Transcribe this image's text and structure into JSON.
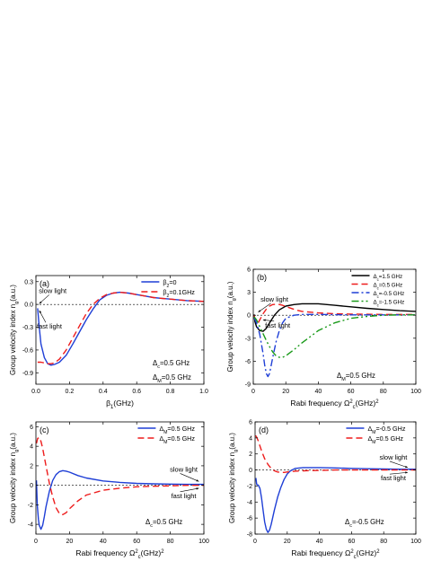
{
  "colors": {
    "black": "#000000",
    "red": "#ee1c1c",
    "blue": "#1f3fd6",
    "green": "#1a9a1a",
    "ref": "#000000"
  },
  "chart_data": [
    {
      "type": "line",
      "panel_label": "(a)",
      "xlabel_main": "β",
      "xlabel_sub": "1",
      "xlabel_tail": "(GHz)",
      "ylabel_main": "Group velocity index n",
      "ylabel_sub": "g",
      "ylabel_tail": "(a.u.)",
      "xlim": [
        0,
        1.0
      ],
      "ylim": [
        -1.05,
        0.38
      ],
      "xticks": [
        0.0,
        0.2,
        0.4,
        0.6,
        0.8,
        1.0
      ],
      "xticklabels": [
        "0.0",
        "0.2",
        "0.4",
        "0.6",
        "0.8",
        "1.0"
      ],
      "yticks": [
        -0.9,
        -0.6,
        -0.3,
        0.0,
        0.3
      ],
      "yticklabels": [
        "-0.9",
        "-0.6",
        "-0.3",
        "0.0",
        "0.3"
      ],
      "reference_line": 0,
      "legend_position": "top-right",
      "series": [
        {
          "name_main": "β",
          "name_sub": "2",
          "name_tail": "=0",
          "color": "blue",
          "dash": "solid",
          "x": [
            0.01,
            0.02,
            0.03,
            0.05,
            0.07,
            0.09,
            0.11,
            0.14,
            0.18,
            0.22,
            0.26,
            0.3,
            0.34,
            0.38,
            0.42,
            0.46,
            0.5,
            0.55,
            0.6,
            0.65,
            0.7,
            0.75,
            0.8,
            0.85,
            0.9,
            0.95,
            1.0
          ],
          "y": [
            -0.05,
            -0.3,
            -0.52,
            -0.7,
            -0.78,
            -0.8,
            -0.79,
            -0.76,
            -0.67,
            -0.52,
            -0.36,
            -0.2,
            -0.06,
            0.06,
            0.12,
            0.15,
            0.16,
            0.15,
            0.13,
            0.11,
            0.09,
            0.08,
            0.07,
            0.06,
            0.05,
            0.045,
            0.04
          ]
        },
        {
          "name_main": "β",
          "name_sub": "2",
          "name_tail": "=0.1GHz",
          "color": "red",
          "dash": "dashed",
          "x": [
            0.01,
            0.03,
            0.05,
            0.07,
            0.09,
            0.11,
            0.14,
            0.18,
            0.22,
            0.26,
            0.3,
            0.34,
            0.38,
            0.42,
            0.46,
            0.5,
            0.55,
            0.6,
            0.65,
            0.7,
            0.75,
            0.8,
            0.85,
            0.9,
            0.95,
            1.0
          ],
          "y": [
            -0.76,
            -0.76,
            -0.77,
            -0.78,
            -0.78,
            -0.77,
            -0.72,
            -0.6,
            -0.44,
            -0.28,
            -0.12,
            0.0,
            0.08,
            0.13,
            0.15,
            0.16,
            0.15,
            0.13,
            0.11,
            0.09,
            0.08,
            0.07,
            0.06,
            0.05,
            0.045,
            0.04
          ]
        }
      ],
      "annotations": [
        {
          "text": "slow light",
          "x": 0.1,
          "y": 0.15,
          "ax": 0.02,
          "ay": 0.01
        },
        {
          "text": "fast light",
          "x": 0.08,
          "y": -0.32,
          "ax": 0.02,
          "ay": -0.08
        }
      ],
      "params": [
        {
          "main": "Δ",
          "sub": "c",
          "tail": "=0.5 GHz"
        },
        {
          "main": "Δ",
          "sub": "M",
          "tail": "=0.5 GHz"
        }
      ]
    },
    {
      "type": "line",
      "panel_label": "(b)",
      "xlabel_main": "Rabi frequency Ω",
      "xlabel_sup": "2",
      "xlabel_sub": "c",
      "xlabel_tail": "(GHz)",
      "xlabel_sup2": "2",
      "ylabel_main": "Group velocity index n",
      "ylabel_sub": "g",
      "ylabel_tail": "(a.u.)",
      "xlim": [
        0,
        100
      ],
      "ylim": [
        -9,
        6
      ],
      "xticks": [
        0,
        20,
        40,
        60,
        80,
        100
      ],
      "xticklabels": [
        "0",
        "20",
        "40",
        "60",
        "80",
        "100"
      ],
      "yticks": [
        -9,
        -6,
        -3,
        0,
        3,
        6
      ],
      "yticklabels": [
        "-9",
        "-6",
        "-3",
        "0",
        "3",
        "6"
      ],
      "reference_line": 0,
      "legend_position": "top-right",
      "series": [
        {
          "name_main": "Δ",
          "name_sub": "c",
          "name_tail": "=1.5 GHz",
          "color": "black",
          "dash": "solid",
          "x": [
            0.5,
            1,
            2,
            4,
            6,
            8,
            10,
            13,
            16,
            20,
            25,
            30,
            35,
            40,
            50,
            60,
            70,
            80,
            90,
            100
          ],
          "y": [
            0.1,
            -0.8,
            -1.5,
            -2.0,
            -2.1,
            -1.7,
            -1.0,
            0.0,
            0.7,
            1.2,
            1.4,
            1.5,
            1.5,
            1.5,
            1.3,
            1.1,
            0.9,
            0.75,
            0.6,
            0.5
          ]
        },
        {
          "name_main": "Δ",
          "name_sub": "c",
          "name_tail": "=0.5 GHz",
          "color": "red",
          "dash": "dashed",
          "x": [
            0.5,
            1,
            2,
            3,
            4,
            5,
            6,
            8,
            10,
            12,
            15,
            18,
            22,
            26,
            30,
            40,
            50,
            60,
            80,
            100
          ],
          "y": [
            0.0,
            -0.5,
            -1.0,
            -1.0,
            -0.6,
            -0.2,
            0.2,
            0.8,
            1.2,
            1.4,
            1.45,
            1.3,
            1.0,
            0.7,
            0.5,
            0.3,
            0.2,
            0.15,
            0.1,
            0.1
          ]
        },
        {
          "name_main": "Δ",
          "name_sub": "c",
          "name_tail": "=-0.5 GHz",
          "color": "blue",
          "dash": "dashdot",
          "x": [
            0.5,
            2,
            4,
            6,
            7,
            8,
            9,
            10,
            12,
            14,
            16,
            18,
            20,
            25,
            30,
            40,
            60,
            80,
            100
          ],
          "y": [
            -0.3,
            -1.0,
            -2.5,
            -5.0,
            -6.5,
            -7.6,
            -8.0,
            -7.6,
            -5.5,
            -3.5,
            -2.0,
            -1.0,
            -0.4,
            0.0,
            0.1,
            0.1,
            0.05,
            0.05,
            0.05
          ]
        },
        {
          "name_main": "Δ",
          "name_sub": "c",
          "name_tail": "=-1.5 GHz",
          "color": "green",
          "dash": "dashdotdot",
          "x": [
            0.5,
            2,
            4,
            6,
            8,
            10,
            12,
            14,
            16,
            18,
            20,
            25,
            30,
            35,
            40,
            50,
            60,
            70,
            80,
            90,
            100
          ],
          "y": [
            -0.2,
            -0.6,
            -1.5,
            -2.4,
            -3.3,
            -4.1,
            -4.8,
            -5.3,
            -5.5,
            -5.5,
            -5.3,
            -4.5,
            -3.6,
            -2.8,
            -2.0,
            -1.0,
            -0.4,
            -0.15,
            0.0,
            0.05,
            0.05
          ]
        }
      ],
      "annotations": [
        {
          "text": "slow light",
          "x": 13,
          "y": 1.8,
          "ax": 3,
          "ay": 0.4
        },
        {
          "text": "fast light",
          "x": 15,
          "y": -1.6,
          "ax": 6,
          "ay": -0.6
        }
      ],
      "params": [
        {
          "main": "Δ",
          "sub": "M",
          "tail": "=0.5 GHz"
        }
      ]
    },
    {
      "type": "line",
      "panel_label": "(c)",
      "xlabel_main": "Rabi frequency Ω",
      "xlabel_sup": "2",
      "xlabel_sub": "c",
      "xlabel_tail": "(GHz)",
      "xlabel_sup2": "2",
      "ylabel_main": "Group velocity index n",
      "ylabel_sub": "g",
      "ylabel_tail": "(a.u.)",
      "xlim": [
        0,
        100
      ],
      "ylim": [
        -5,
        6.5
      ],
      "xticks": [
        0,
        20,
        40,
        60,
        80,
        100
      ],
      "xticklabels": [
        "0",
        "20",
        "40",
        "60",
        "80",
        "100"
      ],
      "yticks": [
        -4,
        -2,
        0,
        2,
        4,
        6
      ],
      "yticklabels": [
        "-4",
        "-2",
        "0",
        "2",
        "4",
        "6"
      ],
      "reference_line": 0,
      "legend_position": "top-right",
      "series": [
        {
          "name_main": "Δ",
          "name_sub": "M",
          "name_tail": "=0.5 GHz",
          "color": "blue",
          "dash": "solid",
          "x": [
            0.3,
            0.8,
            1.5,
            2,
            3,
            4,
            5,
            6,
            8,
            10,
            12,
            14,
            16,
            18,
            20,
            25,
            30,
            40,
            50,
            60,
            70,
            80,
            90,
            100
          ],
          "y": [
            0.5,
            -2.0,
            -3.5,
            -4.1,
            -4.5,
            -4.1,
            -3.2,
            -2.2,
            -0.6,
            0.5,
            1.1,
            1.4,
            1.5,
            1.45,
            1.35,
            1.0,
            0.75,
            0.45,
            0.3,
            0.2,
            0.15,
            0.12,
            0.1,
            0.1
          ]
        },
        {
          "name_main": "Δ",
          "name_sub": "M",
          "name_tail": "=0.5 GHz",
          "color": "red",
          "dash": "dashed",
          "x": [
            0.3,
            1,
            2,
            3,
            4,
            6,
            8,
            10,
            12,
            14,
            16,
            18,
            20,
            25,
            30,
            40,
            50,
            60,
            70,
            80,
            90,
            100
          ],
          "y": [
            4.3,
            4.8,
            4.9,
            4.5,
            3.8,
            2.0,
            0.2,
            -1.2,
            -2.3,
            -2.9,
            -3.0,
            -2.8,
            -2.4,
            -1.6,
            -1.0,
            -0.5,
            -0.3,
            -0.15,
            -0.1,
            -0.05,
            0.0,
            0.0
          ]
        }
      ],
      "annotations": [
        {
          "text": "slow light",
          "x": 88,
          "y": 1.4,
          "ax": 97,
          "ay": 0.4
        },
        {
          "text": "fast light",
          "x": 88,
          "y": -1.3,
          "ax": 97,
          "ay": -0.3
        }
      ],
      "params": [
        {
          "main": "Δ",
          "sub": "c",
          "tail": "=0.5 GHz"
        }
      ]
    },
    {
      "type": "line",
      "panel_label": "(d)",
      "xlabel_main": "Rabi frequency Ω",
      "xlabel_sup": "2",
      "xlabel_sub": "c",
      "xlabel_tail": "(GHz)",
      "xlabel_sup2": "2",
      "ylabel_main": "Group velocity index n",
      "ylabel_sub": "g",
      "ylabel_tail": "(a.u.)",
      "xlim": [
        0,
        100
      ],
      "ylim": [
        -8,
        6
      ],
      "xticks": [
        0,
        20,
        40,
        60,
        80,
        100
      ],
      "xticklabels": [
        "0",
        "20",
        "40",
        "60",
        "80",
        "100"
      ],
      "yticks": [
        -8,
        -6,
        -4,
        -2,
        0,
        2,
        4,
        6
      ],
      "yticklabels": [
        "-8",
        "-6",
        "-4",
        "-2",
        "0",
        "2",
        "4",
        "6"
      ],
      "reference_line": 0,
      "legend_position": "top-right",
      "series": [
        {
          "name_main": "Δ",
          "name_sub": "M",
          "name_tail": "=-0.5 GHz",
          "color": "blue",
          "dash": "solid",
          "x": [
            0.5,
            1,
            2,
            3,
            4,
            5,
            6,
            7,
            8,
            9,
            10,
            12,
            14,
            16,
            18,
            20,
            22,
            25,
            30,
            35,
            40,
            50,
            60,
            70,
            80,
            90,
            100
          ],
          "y": [
            -1.0,
            -1.8,
            -1.9,
            -2.3,
            -3.5,
            -5.0,
            -6.5,
            -7.4,
            -7.8,
            -7.5,
            -6.8,
            -5.0,
            -3.4,
            -2.2,
            -1.2,
            -0.5,
            -0.1,
            0.2,
            0.3,
            0.3,
            0.3,
            0.25,
            0.2,
            0.15,
            0.12,
            0.1,
            0.1
          ]
        },
        {
          "name_main": "Δ",
          "name_sub": "M",
          "name_tail": "=0.5 GHz",
          "color": "red",
          "dash": "dashed",
          "x": [
            0.3,
            1,
            2,
            3,
            4,
            5,
            6,
            8,
            10,
            12,
            14,
            16,
            18,
            20,
            25,
            30,
            40,
            50,
            60,
            80,
            100
          ],
          "y": [
            4.3,
            4.1,
            3.6,
            3.0,
            2.4,
            1.9,
            1.4,
            0.7,
            0.2,
            -0.1,
            -0.25,
            -0.3,
            -0.3,
            -0.25,
            -0.15,
            -0.1,
            -0.05,
            0.0,
            0.0,
            0.0,
            0.0
          ]
        }
      ],
      "annotations": [
        {
          "text": "slow light",
          "x": 86,
          "y": 1.3,
          "ax": 95,
          "ay": 0.3
        },
        {
          "text": "fast light",
          "x": 86,
          "y": -1.3,
          "ax": 95,
          "ay": -0.3
        }
      ],
      "params": [
        {
          "main": "Δ",
          "sub": "c",
          "tail": "=-0.5 GHz"
        }
      ]
    }
  ]
}
